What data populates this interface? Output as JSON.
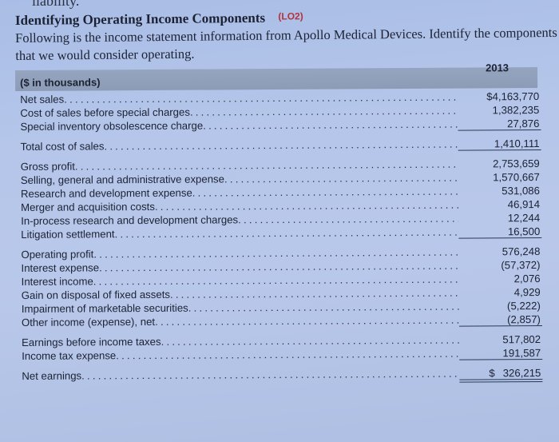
{
  "page": {
    "top_fragment": "liability.",
    "heading": "Identifying Operating Income Components",
    "learning_objective": "(LO2)",
    "intro": "Following is the income statement information from Apollo Medical Devices. Identify the components that we would consider operating.",
    "colors": {
      "header_band": "#8f9fb9",
      "lo_tag": "#b5323a",
      "text": "#1c2233"
    }
  },
  "table": {
    "unit_label": "($ in thousands)",
    "year_header": "2013",
    "dots": "................................................................................................",
    "rows": [
      {
        "label": "Net sales",
        "value": "$4,163,770"
      },
      {
        "label": "Cost of sales before special charges",
        "value": "1,382,235"
      },
      {
        "label": "Special inventory obsolescence charge",
        "value": "27,876"
      },
      {
        "label": "Total cost of sales",
        "value": "1,410,111"
      },
      {
        "label": "Gross profit",
        "value": "2,753,659"
      },
      {
        "label": "Selling, general and administrative expense",
        "value": "1,570,667"
      },
      {
        "label": "Research and development expense",
        "value": "531,086"
      },
      {
        "label": "Merger and acquisition costs",
        "value": "46,914"
      },
      {
        "label": "In-process research and development charges",
        "value": "12,244"
      },
      {
        "label": "Litigation settlement",
        "value": "16,500"
      },
      {
        "label": "Operating profit",
        "value": "576,248"
      },
      {
        "label": "Interest expense",
        "value": "(57,372)"
      },
      {
        "label": "Interest income",
        "value": "2,076"
      },
      {
        "label": "Gain on disposal of fixed assets",
        "value": "4,929"
      },
      {
        "label": "Impairment of marketable securities",
        "value": "(5,222)"
      },
      {
        "label": "Other income (expense), net",
        "value": "(2,857)"
      },
      {
        "label": "Earnings before income taxes",
        "value": "517,802"
      },
      {
        "label": "Income tax expense",
        "value": "191,587"
      },
      {
        "label": "Net earnings",
        "currency": "$",
        "value": "326,215"
      }
    ]
  }
}
